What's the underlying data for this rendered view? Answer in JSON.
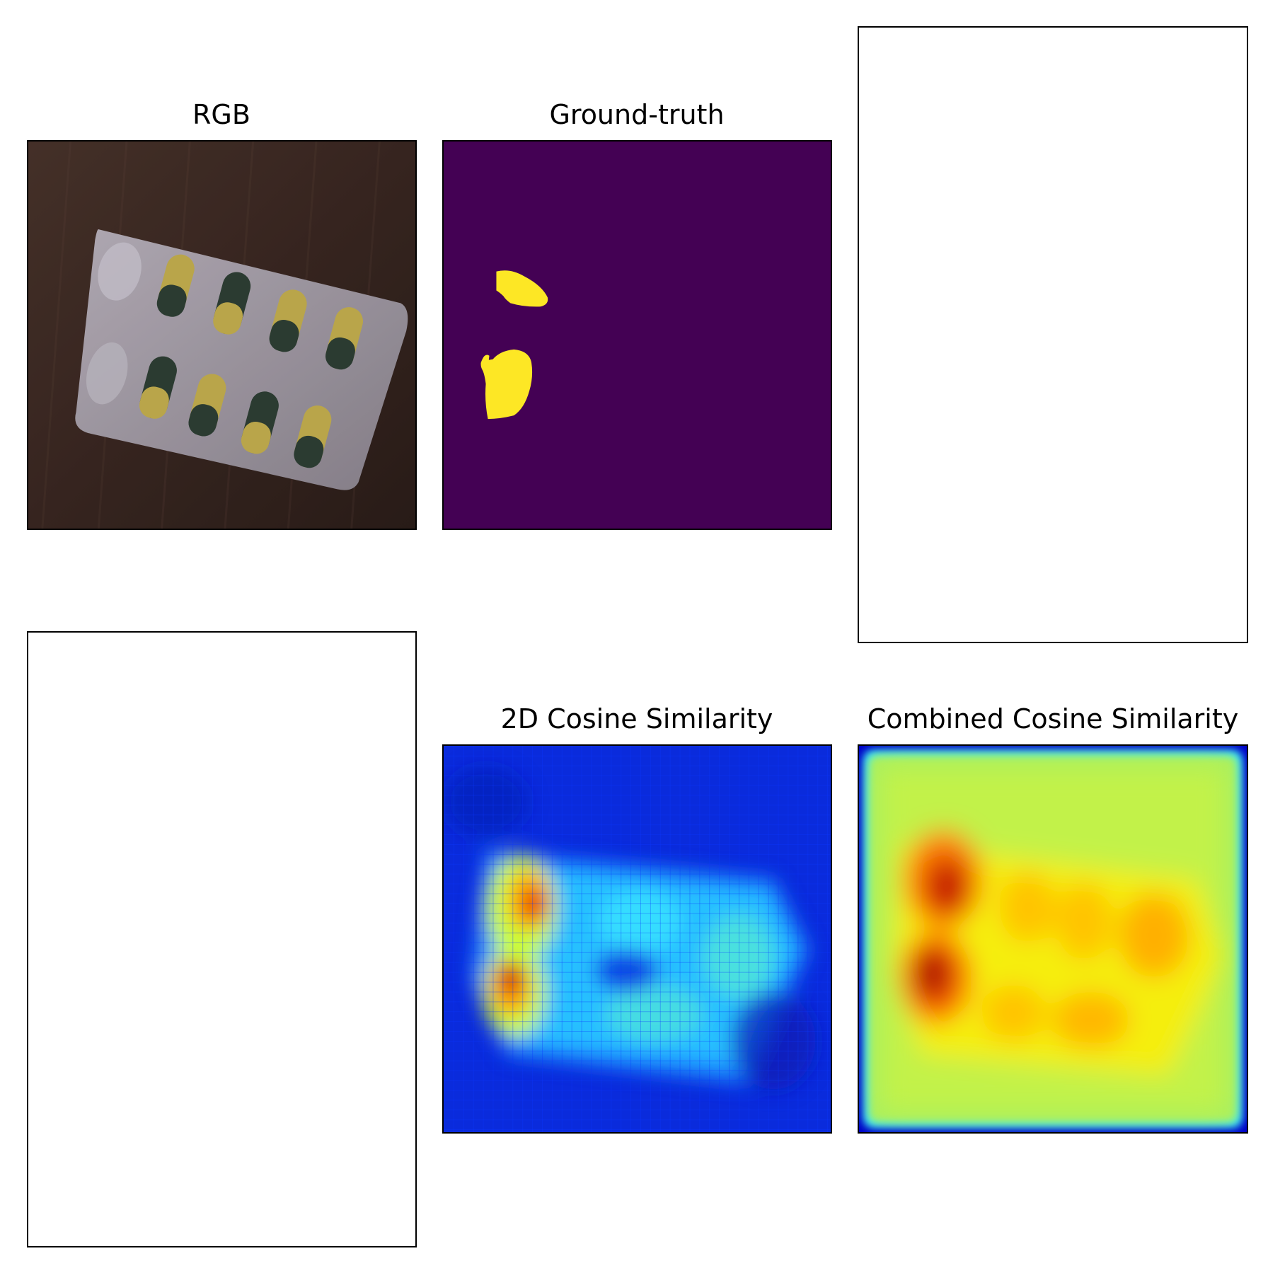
{
  "panels": {
    "rgb": {
      "title": "RGB"
    },
    "ground_truth": {
      "title": "Ground-truth"
    },
    "cos2d": {
      "title": "2D Cosine Similarity"
    },
    "combined": {
      "title": "Combined Cosine Similarity"
    }
  },
  "colors": {
    "mask_background": "#440154",
    "mask_foreground": "#fde725",
    "wood": "#3e2a24",
    "blister": "#a9a2ac",
    "capsule_yellow": "#c9b451",
    "capsule_green": "#2f4036",
    "jet_low": "#0000c8",
    "jet_high": "#8b0000"
  }
}
